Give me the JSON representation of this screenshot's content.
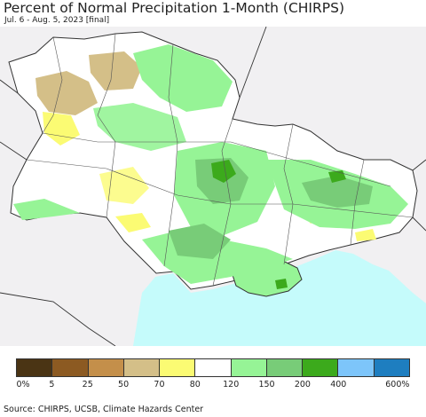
{
  "title": "Percent of Normal Precipitation 1-Month (CHIRPS)",
  "subtitle": "Jul. 6 - Aug. 5, 2023 [final]",
  "source": "Source: CHIRPS, UCSB, Climate Hazards Center",
  "legend": {
    "colors": [
      "#4a3414",
      "#8c5a22",
      "#c48f4a",
      "#d4bf88",
      "#fbfb73",
      "#ffffff",
      "#96f496",
      "#78cc78",
      "#3caa1c",
      "#7dc5fa",
      "#1e7ec0"
    ],
    "ticks": [
      "0%",
      "5",
      "25",
      "50",
      "70",
      "80",
      "120",
      "150",
      "200",
      "400",
      "600%"
    ]
  },
  "map": {
    "sea_color": "#c5fbfb",
    "land_outside_color": "#f1f0f2",
    "region": "Ukraine"
  }
}
